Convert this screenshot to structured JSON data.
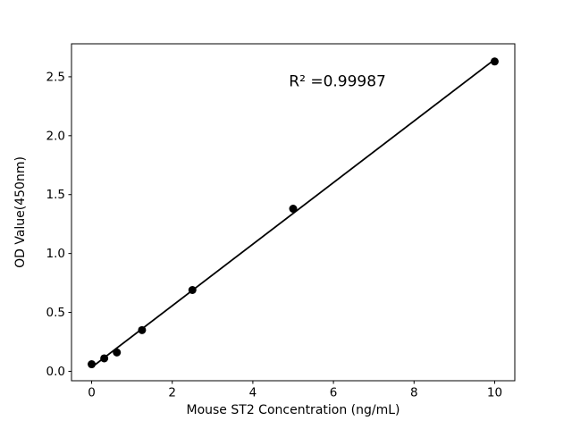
{
  "figure": {
    "background": "#ffffff"
  },
  "chart_data": {
    "type": "scatter",
    "title": "",
    "xlabel": "Mouse ST2 Concentration (ng/mL)",
    "ylabel": "OD Value(450nm)",
    "points": {
      "x": [
        0,
        0.3125,
        0.625,
        1.25,
        2.5,
        5,
        10
      ],
      "y": [
        0.06,
        0.11,
        0.16,
        0.35,
        0.69,
        1.38,
        2.63
      ]
    },
    "fit_line": {
      "x": [
        0,
        10
      ],
      "y": [
        0.034,
        2.647
      ]
    },
    "annotation": {
      "text": "R² =0.99987",
      "x": 6.1,
      "y": 2.42
    },
    "xlim": [
      -0.5,
      10.5
    ],
    "ylim": [
      -0.08,
      2.78
    ],
    "xticks": [
      0,
      2,
      4,
      6,
      8,
      10
    ],
    "xtick_labels": [
      "0",
      "2",
      "4",
      "6",
      "8",
      "10"
    ],
    "yticks": [
      0.0,
      0.5,
      1.0,
      1.5,
      2.0,
      2.5
    ],
    "ytick_labels": [
      "0.0",
      "0.5",
      "1.0",
      "1.5",
      "2.0",
      "2.5"
    ],
    "grid": false,
    "marker_color": "#000000",
    "line_color": "#000000",
    "axis_color": "#000000"
  }
}
